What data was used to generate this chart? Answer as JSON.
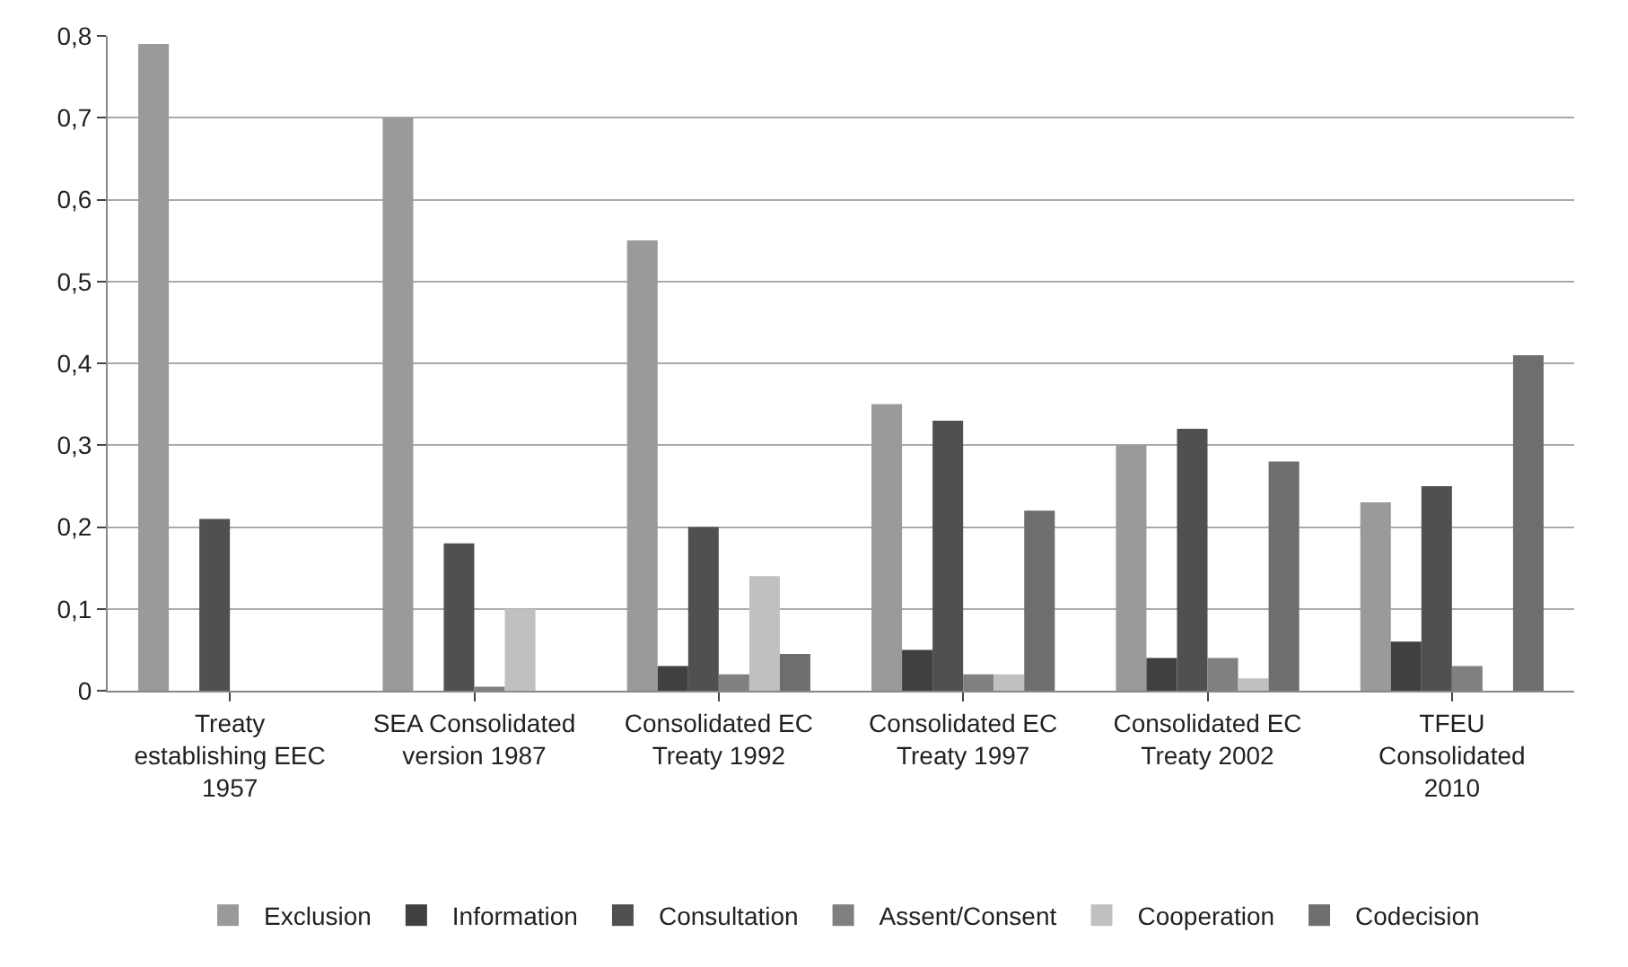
{
  "chart_data": {
    "type": "bar",
    "categories": [
      "Treaty establishing EEC 1957",
      "SEA Consolidated version 1987",
      "Consolidated EC Treaty 1992",
      "Consolidated EC Treaty 1997",
      "Consolidated EC Treaty 2002",
      "TFEU Consolidated 2010"
    ],
    "series": [
      {
        "name": "Exclusion",
        "color": "#9a9a9a",
        "values": [
          0.79,
          0.7,
          0.55,
          0.35,
          0.3,
          0.23
        ]
      },
      {
        "name": "Information",
        "color": "#404040",
        "values": [
          0,
          0,
          0.03,
          0.05,
          0.04,
          0.06
        ]
      },
      {
        "name": "Consultation",
        "color": "#505050",
        "values": [
          0.21,
          0.18,
          0.2,
          0.33,
          0.32,
          0.25
        ]
      },
      {
        "name": "Assent/Consent",
        "color": "#808080",
        "values": [
          0,
          0.005,
          0.02,
          0.02,
          0.04,
          0.03
        ]
      },
      {
        "name": "Cooperation",
        "color": "#c0c0c0",
        "values": [
          0,
          0.1,
          0.14,
          0.02,
          0.015,
          0
        ]
      },
      {
        "name": "Codecision",
        "color": "#6e6e6e",
        "values": [
          0,
          0,
          0.045,
          0.22,
          0.28,
          0.41
        ]
      }
    ],
    "ylim": [
      0,
      0.8
    ],
    "yticks": [
      {
        "value": 0,
        "label": "0"
      },
      {
        "value": 0.1,
        "label": "0,1"
      },
      {
        "value": 0.2,
        "label": "0,2"
      },
      {
        "value": 0.3,
        "label": "0,3"
      },
      {
        "value": 0.4,
        "label": "0,4"
      },
      {
        "value": 0.5,
        "label": "0,5"
      },
      {
        "value": 0.6,
        "label": "0,6"
      },
      {
        "value": 0.7,
        "label": "0,7"
      },
      {
        "value": 0.8,
        "label": "0,8"
      }
    ],
    "grid": "y",
    "legend": "bottom"
  }
}
